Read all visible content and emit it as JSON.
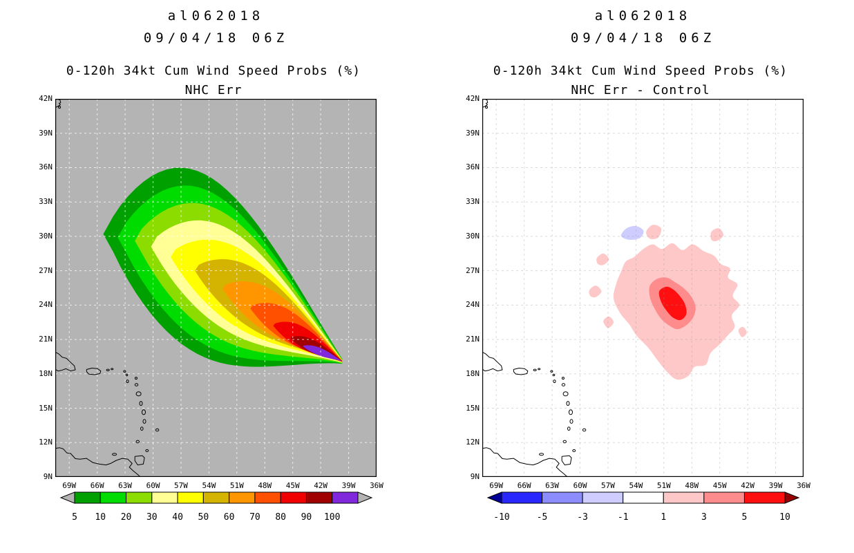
{
  "panels": [
    {
      "title": "al062018",
      "datetime": "09/04/18 06Z",
      "subtitle": "0-120h 34kt Cum Wind Speed Probs (%)",
      "subtitle2": "NHC Err",
      "map_background": "#b4b4b4",
      "lat_tick_labels": [
        "42N",
        "39N",
        "36N",
        "33N",
        "30N",
        "27N",
        "24N",
        "21N",
        "18N",
        "15N",
        "12N",
        "9N"
      ],
      "lon_tick_labels": [
        "69W",
        "66W",
        "63W",
        "60W",
        "57W",
        "54W",
        "51W",
        "48W",
        "45W",
        "42W",
        "39W",
        "36W"
      ],
      "colorbar": {
        "boundary_labels": [
          "5",
          "10",
          "20",
          "30",
          "40",
          "50",
          "60",
          "70",
          "80",
          "90",
          "100"
        ],
        "cell_colors": [
          "#00a000",
          "#00dc00",
          "#8cdc00",
          "#ffff96",
          "#ffff00",
          "#d4b400",
          "#ff9600",
          "#ff5000",
          "#f00000",
          "#a00000",
          "#8228dc"
        ],
        "under_arrow_color": "#b4b4b4",
        "over_arrow_color": "#b4b4b4"
      }
    },
    {
      "title": "al062018",
      "datetime": "09/04/18 06Z",
      "subtitle": "0-120h 34kt Cum Wind Speed Probs (%)",
      "subtitle2": "NHC Err - Control",
      "map_background": "#ffffff",
      "lat_tick_labels": [
        "42N",
        "39N",
        "36N",
        "33N",
        "30N",
        "27N",
        "24N",
        "21N",
        "18N",
        "15N",
        "12N",
        "9N"
      ],
      "lon_tick_labels": [
        "69W",
        "66W",
        "63W",
        "60W",
        "57W",
        "54W",
        "51W",
        "48W",
        "45W",
        "42W",
        "39W",
        "36W"
      ],
      "colorbar": {
        "boundary_labels": [
          "-10",
          "-5",
          "-3",
          "-1",
          "1",
          "3",
          "5",
          "10"
        ],
        "cell_colors": [
          "#2828ff",
          "#8c8cff",
          "#cdcdff",
          "#ffffff",
          "#ffc8c8",
          "#ff8c8c",
          "#ff0f0f"
        ],
        "under_arrow_color": "#000096",
        "over_arrow_color": "#960000"
      }
    }
  ],
  "chart_data": [
    {
      "type": "filled_contour_map",
      "storm": "al062018",
      "init_time": "09/04/18 06Z",
      "variable": "0-120h 34kt cumulative wind speed probability (%)",
      "model": "NHC Err",
      "lon_range_degW": [
        70.5,
        36
      ],
      "lat_range_degN": [
        9,
        42
      ],
      "grid_interval_deg": 3,
      "levels_percent": [
        5,
        10,
        20,
        30,
        40,
        50,
        60,
        70,
        80,
        90,
        100
      ],
      "swath_tip": [
        39.7,
        19.1
      ],
      "bands": [
        {
          "level": 5,
          "color": "#00a000",
          "back": [
            64.3,
            30.2
          ],
          "half_width_deg": 8.0
        },
        {
          "level": 10,
          "color": "#00dc00",
          "back": [
            62.9,
            29.9
          ],
          "half_width_deg": 6.8
        },
        {
          "level": 20,
          "color": "#8cdc00",
          "back": [
            61.2,
            29.6
          ],
          "half_width_deg": 5.6
        },
        {
          "level": 30,
          "color": "#ffff96",
          "back": [
            59.6,
            29.1
          ],
          "half_width_deg": 4.5
        },
        {
          "level": 40,
          "color": "#ffff00",
          "back": [
            57.6,
            28.2
          ],
          "half_width_deg": 3.5
        },
        {
          "level": 50,
          "color": "#d4b400",
          "back": [
            55.1,
            27.0
          ],
          "half_width_deg": 2.7
        },
        {
          "level": 60,
          "color": "#ff9600",
          "back": [
            52.2,
            25.4
          ],
          "half_width_deg": 2.0
        },
        {
          "level": 70,
          "color": "#ff5000",
          "back": [
            49.3,
            23.7
          ],
          "half_width_deg": 1.45
        },
        {
          "level": 80,
          "color": "#f00000",
          "back": [
            46.9,
            22.2
          ],
          "half_width_deg": 1.0
        },
        {
          "level": 90,
          "color": "#a00000",
          "back": [
            45.1,
            21.1
          ],
          "half_width_deg": 0.6
        },
        {
          "level": 100,
          "color": "#8228dc",
          "back": [
            43.8,
            20.4
          ],
          "half_width_deg": 0.35
        }
      ]
    },
    {
      "type": "filled_contour_map_difference",
      "storm": "al062018",
      "init_time": "09/04/18 06Z",
      "variable": "0-120h 34kt cumulative wind speed probability difference (%)",
      "model": "NHC Err - Control",
      "lon_range_degW": [
        70.5,
        36
      ],
      "lat_range_degN": [
        9,
        42
      ],
      "levels": [
        -10,
        -5,
        -3,
        -1,
        1,
        3,
        5,
        10
      ],
      "regions": [
        {
          "level_range": "1 to 3",
          "color": "#ffc8c8",
          "polygon": [
            [
              56.1,
              25.9
            ],
            [
              56.4,
              24.6
            ],
            [
              55.7,
              23.3
            ],
            [
              54.7,
              22.3
            ],
            [
              53.9,
              21.3
            ],
            [
              52.7,
              20.3
            ],
            [
              51.7,
              19.2
            ],
            [
              50.7,
              18.2
            ],
            [
              49.6,
              17.5
            ],
            [
              48.4,
              17.8
            ],
            [
              47.7,
              18.6
            ],
            [
              46.5,
              18.8
            ],
            [
              46.0,
              19.8
            ],
            [
              45.1,
              20.5
            ],
            [
              44.2,
              21.3
            ],
            [
              43.4,
              22.1
            ],
            [
              43.7,
              23.1
            ],
            [
              42.9,
              24.0
            ],
            [
              43.6,
              24.8
            ],
            [
              43.1,
              25.8
            ],
            [
              44.1,
              26.4
            ],
            [
              43.9,
              27.2
            ],
            [
              44.9,
              27.6
            ],
            [
              45.6,
              28.3
            ],
            [
              46.7,
              28.7
            ],
            [
              47.9,
              29.3
            ],
            [
              49.0,
              28.8
            ],
            [
              50.1,
              29.4
            ],
            [
              51.2,
              28.9
            ],
            [
              52.2,
              29.3
            ],
            [
              53.2,
              28.9
            ],
            [
              54.2,
              28.2
            ],
            [
              55.1,
              27.8
            ],
            [
              55.6,
              26.9
            ]
          ]
        },
        {
          "level_range": "1 to 3",
          "color": "#ffc8c8",
          "polygon": [
            [
              52.9,
              30.4
            ],
            [
              52.2,
              31.0
            ],
            [
              51.3,
              30.7
            ],
            [
              51.6,
              29.9
            ],
            [
              52.5,
              29.8
            ]
          ]
        },
        {
          "level_range": "1 to 3",
          "color": "#ffc8c8",
          "polygon": [
            [
              58.2,
              28.1
            ],
            [
              57.5,
              28.5
            ],
            [
              56.9,
              28.0
            ],
            [
              57.5,
              27.5
            ],
            [
              58.1,
              27.6
            ]
          ]
        },
        {
          "level_range": "1 to 3",
          "color": "#ffc8c8",
          "polygon": [
            [
              59.0,
              25.3
            ],
            [
              58.3,
              25.7
            ],
            [
              57.7,
              25.2
            ],
            [
              58.3,
              24.7
            ],
            [
              58.9,
              24.8
            ]
          ]
        },
        {
          "level_range": "1 to 3",
          "color": "#ffc8c8",
          "polygon": [
            [
              57.5,
              22.6
            ],
            [
              56.9,
              23.0
            ],
            [
              56.4,
              22.5
            ],
            [
              57.0,
              22.0
            ]
          ]
        },
        {
          "level_range": "1 to 3",
          "color": "#ffc8c8",
          "polygon": [
            [
              45.9,
              30.4
            ],
            [
              45.1,
              30.7
            ],
            [
              44.6,
              30.1
            ],
            [
              45.3,
              29.6
            ],
            [
              45.9,
              29.7
            ]
          ]
        },
        {
          "level_range": "1 to 3",
          "color": "#ffc8c8",
          "polygon": [
            [
              43.0,
              21.8
            ],
            [
              42.5,
              22.1
            ],
            [
              42.1,
              21.6
            ],
            [
              42.6,
              21.2
            ]
          ]
        },
        {
          "level_range": "3 to 5",
          "color": "#ff8c8c",
          "polygon": [
            [
              52.5,
              25.7
            ],
            [
              51.7,
              26.3
            ],
            [
              50.7,
              26.4
            ],
            [
              49.8,
              26.0
            ],
            [
              48.9,
              25.5
            ],
            [
              48.1,
              24.8
            ],
            [
              47.6,
              23.9
            ],
            [
              47.8,
              23.0
            ],
            [
              48.5,
              22.3
            ],
            [
              49.5,
              21.9
            ],
            [
              50.4,
              22.2
            ],
            [
              51.3,
              22.8
            ],
            [
              52.0,
              23.7
            ],
            [
              52.5,
              24.7
            ]
          ]
        },
        {
          "level_range": "5 to 10",
          "color": "#ff0f0f",
          "polygon": [
            [
              51.5,
              25.2
            ],
            [
              50.7,
              25.6
            ],
            [
              49.9,
              25.3
            ],
            [
              49.2,
              24.7
            ],
            [
              48.7,
              24.0
            ],
            [
              48.6,
              23.2
            ],
            [
              49.2,
              22.7
            ],
            [
              50.0,
              22.9
            ],
            [
              50.7,
              23.5
            ],
            [
              51.3,
              24.3
            ]
          ]
        },
        {
          "level_range": "-3 to -1",
          "color": "#cdcdff",
          "polygon": [
            [
              55.6,
              30.1
            ],
            [
              55.0,
              30.7
            ],
            [
              54.0,
              30.9
            ],
            [
              53.2,
              30.5
            ],
            [
              53.5,
              29.9
            ],
            [
              54.4,
              29.7
            ],
            [
              55.2,
              29.8
            ]
          ]
        }
      ]
    }
  ]
}
